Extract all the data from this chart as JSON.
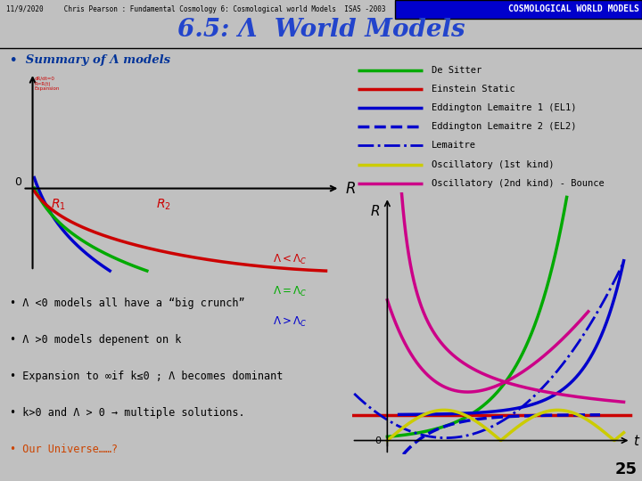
{
  "bg_color": "#c0c0c0",
  "header_bg": "#0000cc",
  "header_text": "COSMOLOGICAL WORLD MODELS",
  "header_small": "11/9/2020     Chris Pearson : Fundamental Cosmology 6: Cosmological world Models  ISAS -2003",
  "title": "6.5: Λ  World Models",
  "bullet_header": "Summary of Λ models",
  "bullets": [
    "• Λ <0 models all have a “big crunch”",
    "• Λ >0 models depenent on k",
    "• Expansion to ∞if k≤0 ; Λ becomes dominant",
    "• k>0 and Λ > 0 → multiple solutions.",
    "• Our Universe……?"
  ],
  "legend_items": [
    {
      "label": "De Sitter",
      "color": "#00aa00",
      "ls": "solid",
      "lw": 2.5
    },
    {
      "label": "Einstein Static",
      "color": "#cc0000",
      "ls": "solid",
      "lw": 2.5
    },
    {
      "label": "Eddington Lemaitre 1 (EL1)",
      "color": "#0000cc",
      "ls": "solid",
      "lw": 2.5
    },
    {
      "label": "Eddington Lemaitre 2 (EL2)",
      "color": "#0000cc",
      "ls": "dashed",
      "lw": 2.5
    },
    {
      "label": "Lemaitre",
      "color": "#0000cc",
      "ls": "dashdot",
      "lw": 2.0
    },
    {
      "label": "Oscillatory (1st kind)",
      "color": "#cccc00",
      "ls": "solid",
      "lw": 2.5
    },
    {
      "label": "Oscillatory (2nd kind) - Bounce",
      "color": "#cc0088",
      "ls": "solid",
      "lw": 2.5
    }
  ],
  "page_number": "25",
  "plot_bg": "#ffffff",
  "last_bullet_color": "#cc4400"
}
